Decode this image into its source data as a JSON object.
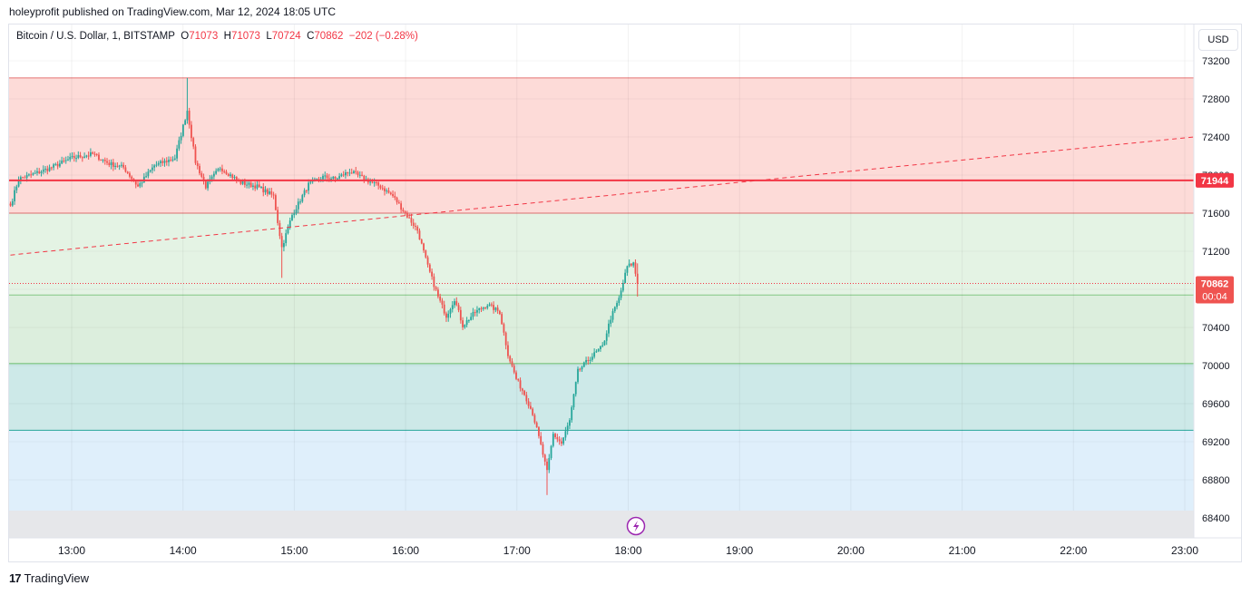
{
  "publish_line": "holeyprofit published on TradingView.com, Mar 12, 2024 18:05 UTC",
  "legend": {
    "symbol": "Bitcoin / U.S. Dollar, 1, BITSTAMP",
    "open_label": "O",
    "open": "71073",
    "high_label": "H",
    "high": "71073",
    "low_label": "L",
    "low": "70724",
    "close_label": "C",
    "close": "70862",
    "change": "−202 (−0.28%)"
  },
  "currency_button": "USD",
  "footer_brand": "TradingView",
  "price_tags": {
    "level": "71944",
    "last": "70862",
    "countdown": "00:04"
  },
  "colors": {
    "up": "#26a69a",
    "down": "#ef5350",
    "red_zone": "#fddbd8",
    "green_zone1": "#e4f3e4",
    "green_zone2": "#dceedd",
    "teal_zone": "#cde9e8",
    "blue_zone": "#dfeffb",
    "level_red": "#f23645"
  },
  "chart_data": {
    "type": "candlestick",
    "timeframe": "1",
    "x_ticks": [
      "13:00",
      "14:00",
      "15:00",
      "16:00",
      "17:00",
      "18:00",
      "19:00",
      "20:00",
      "21:00",
      "22:00",
      "23:00"
    ],
    "y_ticks": [
      73200,
      72800,
      72400,
      72000,
      71600,
      71200,
      70800,
      70400,
      70000,
      69600,
      69200,
      68800,
      68400
    ],
    "ylim": [
      68280,
      73420
    ],
    "zones": [
      {
        "from": 71600,
        "to": 73020,
        "color": "red_zone"
      },
      {
        "from": 70740,
        "to": 71600,
        "color": "green_zone1"
      },
      {
        "from": 70020,
        "to": 70740,
        "color": "green_zone2"
      },
      {
        "from": 69320,
        "to": 70020,
        "color": "teal_zone"
      },
      {
        "from": 68460,
        "to": 69320,
        "color": "blue_zone"
      }
    ],
    "horizontal_level": 71944,
    "last_price": 70862,
    "trendline": {
      "start": {
        "time": "12:27",
        "price": 71160
      },
      "end": {
        "time": "23:05",
        "price": 72400
      }
    },
    "candles_anchor_start": "12:27",
    "candles_anchor_end": "18:05",
    "close_path": [
      [
        0,
        71680
      ],
      [
        4,
        71960
      ],
      [
        10,
        72000
      ],
      [
        20,
        72080
      ],
      [
        30,
        72180
      ],
      [
        40,
        72220
      ],
      [
        48,
        72120
      ],
      [
        55,
        72080
      ],
      [
        62,
        71880
      ],
      [
        70,
        72100
      ],
      [
        80,
        72180
      ],
      [
        86,
        72680
      ],
      [
        90,
        72140
      ],
      [
        95,
        71880
      ],
      [
        102,
        72080
      ],
      [
        112,
        71920
      ],
      [
        120,
        71880
      ],
      [
        128,
        71780
      ],
      [
        132,
        71240
      ],
      [
        137,
        71580
      ],
      [
        145,
        71900
      ],
      [
        152,
        71980
      ],
      [
        158,
        71960
      ],
      [
        165,
        72040
      ],
      [
        172,
        71960
      ],
      [
        180,
        71880
      ],
      [
        186,
        71780
      ],
      [
        192,
        71600
      ],
      [
        198,
        71420
      ],
      [
        203,
        71040
      ],
      [
        208,
        70720
      ],
      [
        212,
        70520
      ],
      [
        216,
        70700
      ],
      [
        220,
        70420
      ],
      [
        226,
        70560
      ],
      [
        232,
        70640
      ],
      [
        238,
        70560
      ],
      [
        242,
        70120
      ],
      [
        246,
        69860
      ],
      [
        250,
        69700
      ],
      [
        254,
        69500
      ],
      [
        258,
        69160
      ],
      [
        261,
        68880
      ],
      [
        264,
        69280
      ],
      [
        268,
        69180
      ],
      [
        272,
        69420
      ],
      [
        276,
        69940
      ],
      [
        282,
        70080
      ],
      [
        288,
        70200
      ],
      [
        292,
        70500
      ],
      [
        296,
        70700
      ],
      [
        300,
        71040
      ],
      [
        303,
        71073
      ],
      [
        305,
        70862
      ]
    ],
    "high_extremes": [
      {
        "i": 86,
        "price": 73020
      }
    ],
    "low_extremes": [
      {
        "i": 261,
        "price": 68640
      },
      {
        "i": 132,
        "price": 70920
      }
    ]
  }
}
